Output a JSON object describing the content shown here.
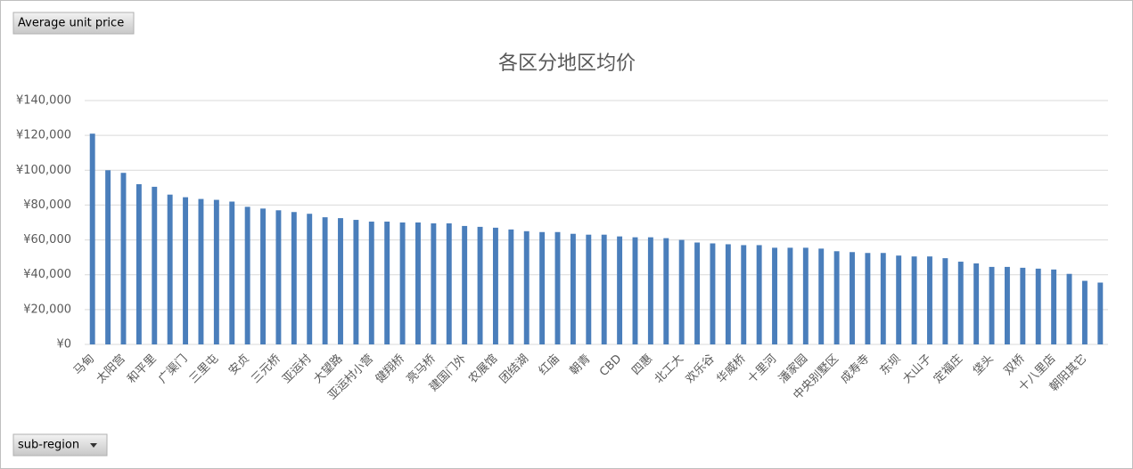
{
  "buttons": {
    "value_field": "Average unit price",
    "axis_field": "sub-region"
  },
  "chart_data": {
    "type": "bar",
    "title": "各区分地区均价",
    "categories": [
      "马甸",
      null,
      "太阳宫",
      null,
      "和平里",
      null,
      "广渠门",
      null,
      "三里屯",
      null,
      "安贞",
      null,
      "三元桥",
      null,
      "亚运村",
      null,
      "大望路",
      null,
      "亚运村小营",
      null,
      "健翔桥",
      null,
      "亮马桥",
      null,
      "建国门外",
      null,
      "农展馆",
      null,
      "团结湖",
      null,
      "红庙",
      null,
      "朝青",
      null,
      "CBD",
      null,
      "四惠",
      null,
      "北工大",
      null,
      "欢乐谷",
      null,
      "华威桥",
      null,
      "十里河",
      null,
      "潘家园",
      null,
      "中央别墅区",
      null,
      "成寿寺",
      null,
      "东坝",
      null,
      "大山子",
      null,
      "定福庄",
      null,
      "垡头",
      null,
      "双桥",
      null,
      "十八里店",
      null,
      "朝阳其它",
      null
    ],
    "values": [
      121000,
      100000,
      98500,
      92000,
      90500,
      86000,
      84500,
      83500,
      83000,
      82000,
      79000,
      78000,
      77000,
      76000,
      75000,
      73000,
      72500,
      71500,
      70500,
      70500,
      70000,
      70000,
      69500,
      69500,
      68000,
      67500,
      67000,
      66000,
      65000,
      64500,
      64500,
      63500,
      63000,
      63000,
      62000,
      61500,
      61500,
      61000,
      60000,
      58500,
      58000,
      57500,
      57000,
      57000,
      55500,
      55500,
      55500,
      55000,
      53500,
      53000,
      52500,
      52500,
      51000,
      50500,
      50500,
      49500,
      47500,
      46500,
      44500,
      44500,
      44000,
      43500,
      43000,
      40500,
      36500,
      35500
    ],
    "color": "#4a7ebb",
    "ylim": [
      0,
      140000
    ],
    "yticks": [
      {
        "value": 0,
        "label": "¥0"
      },
      {
        "value": 20000,
        "label": "¥20,000"
      },
      {
        "value": 40000,
        "label": "¥40,000"
      },
      {
        "value": 60000,
        "label": "¥60,000"
      },
      {
        "value": 80000,
        "label": "¥80,000"
      },
      {
        "value": 100000,
        "label": "¥100,000"
      },
      {
        "value": 120000,
        "label": "¥120,000"
      },
      {
        "value": 140000,
        "label": "¥140,000"
      }
    ],
    "grid": true
  }
}
